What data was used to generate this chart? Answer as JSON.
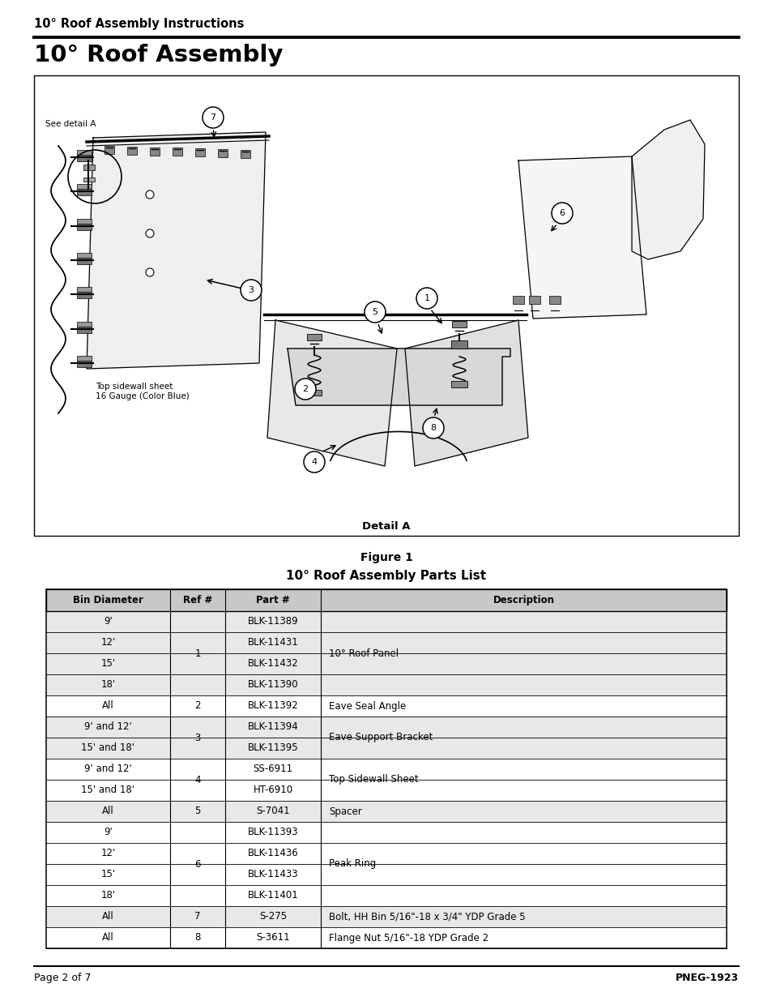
{
  "page_title_small": "10° Roof Assembly Instructions",
  "page_title_large": "10° Roof Assembly",
  "figure_caption": "Figure 1",
  "table_title": "10° Roof Assembly Parts List",
  "table_headers": [
    "Bin Diameter",
    "Ref #",
    "Part #",
    "Description"
  ],
  "row_shading": [
    true,
    true,
    true,
    true,
    false,
    true,
    true,
    false,
    false,
    true,
    false,
    false,
    false,
    false,
    true,
    false
  ],
  "ref_values": [
    "1",
    null,
    null,
    null,
    "2",
    "3",
    null,
    "4",
    null,
    "5",
    "6",
    null,
    null,
    null,
    "7",
    "8"
  ],
  "bin_diameters": [
    "9'",
    "12'",
    "15'",
    "18'",
    "All",
    "9' and 12'",
    "15' and 18'",
    "9' and 12'",
    "15' and 18'",
    "All",
    "9'",
    "12'",
    "15'",
    "18'",
    "All",
    "All"
  ],
  "part_numbers": [
    "BLK-11389",
    "BLK-11431",
    "BLK-11432",
    "BLK-11390",
    "BLK-11392",
    "BLK-11394",
    "BLK-11395",
    "SS-6911",
    "HT-6910",
    "S-7041",
    "BLK-11393",
    "BLK-11436",
    "BLK-11433",
    "BLK-11401",
    "S-275",
    "S-3611"
  ],
  "desc_values": [
    "10° Roof Panel",
    null,
    null,
    null,
    "Eave Seal Angle",
    "Eave Support Bracket",
    null,
    "Top Sidewall Sheet",
    null,
    "Spacer",
    "Peak Ring",
    null,
    null,
    null,
    "Bolt, HH Bin 5/16\"-18 x 3/4\" YDP Grade 5",
    "Flange Nut 5/16\"-18 YDP Grade 2"
  ],
  "ref_spans": [
    4,
    0,
    0,
    0,
    1,
    2,
    0,
    2,
    0,
    1,
    4,
    0,
    0,
    0,
    1,
    1
  ],
  "desc_spans": [
    4,
    0,
    0,
    0,
    1,
    2,
    0,
    2,
    0,
    1,
    4,
    0,
    0,
    0,
    1,
    1
  ],
  "footer_left": "Page 2 of 7",
  "footer_right": "PNEG-1923",
  "bg_color": "#ffffff",
  "header_bg": "#c8c8c8",
  "shaded_row_bg": "#e8e8e8",
  "text_color": "#000000"
}
